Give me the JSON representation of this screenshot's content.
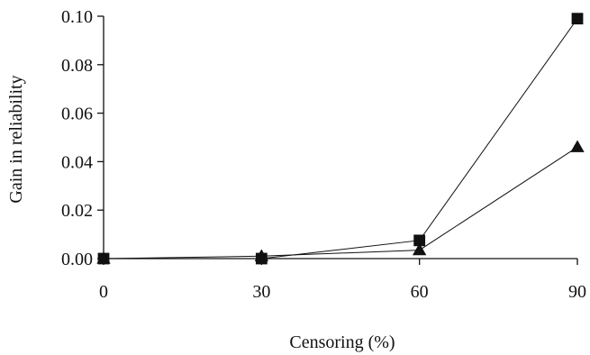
{
  "chart_data": {
    "type": "line",
    "title": "",
    "xlabel": "Censoring (%)",
    "ylabel": "Gain in reliability",
    "x": [
      0,
      30,
      60,
      90
    ],
    "x_tick_labels": [
      "0",
      "30",
      "60",
      "90"
    ],
    "y_tick_labels": [
      "0.00",
      "0.02",
      "0.04",
      "0.06",
      "0.08",
      "0.10"
    ],
    "xlim": [
      0,
      90
    ],
    "ylim": [
      0,
      0.1
    ],
    "grid": false,
    "legend": "none",
    "series": [
      {
        "marker": "square",
        "color": "#111111",
        "values": [
          0.0,
          0.0,
          0.0075,
          0.099
        ]
      },
      {
        "marker": "triangle",
        "color": "#111111",
        "values": [
          0.0,
          0.001,
          0.0035,
          0.046
        ]
      }
    ]
  }
}
